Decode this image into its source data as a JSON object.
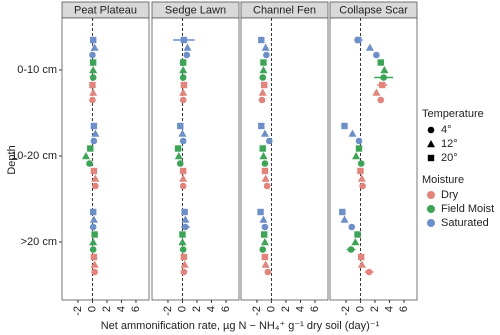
{
  "chart_data": {
    "type": "dot",
    "x_title": "Net ammonification rate, µg N − NH₄⁺ g⁻¹ dry soil (day)⁻¹",
    "y_title": "Depth",
    "depths": [
      "0-10 cm",
      "10-20 cm",
      ">20 cm"
    ],
    "xlim": [
      -4.2,
      7.8
    ],
    "xticks": [
      -2,
      0,
      2,
      4,
      6
    ],
    "legend": {
      "temperature": {
        "title": "Temperature",
        "items": [
          {
            "label": "4°",
            "shape": "circle"
          },
          {
            "label": "12°",
            "shape": "triangle"
          },
          {
            "label": "20°",
            "shape": "square"
          }
        ]
      },
      "moisture": {
        "title": "Moisture",
        "items": [
          {
            "label": "Dry",
            "color": "#e5837a"
          },
          {
            "label": "Field Moist",
            "color": "#3aa655"
          },
          {
            "label": "Saturated",
            "color": "#6b8fcb"
          }
        ]
      }
    },
    "facets": [
      {
        "title": "Peat Plateau",
        "values": [
          [
            [
              0.0,
              0.1,
              0.0
            ],
            [
              0.1,
              0.1,
              0.1
            ],
            [
              0.0,
              0.3,
              0.1
            ]
          ],
          [
            [
              0.4,
              0.4,
              0.2
            ],
            [
              -0.4,
              -0.9,
              -0.3
            ],
            [
              0.2,
              0.4,
              0.2
            ]
          ],
          [
            [
              0.3,
              0.3,
              0.2
            ],
            [
              0.1,
              0.1,
              0.3
            ],
            [
              0.1,
              0.2,
              0.1
            ]
          ]
        ],
        "errors": [
          [
            [
              null,
              null,
              null
            ],
            [
              null,
              null,
              null
            ],
            [
              null,
              null,
              null
            ]
          ],
          [
            [
              null,
              null,
              null
            ],
            [
              null,
              null,
              null
            ],
            [
              null,
              null,
              null
            ]
          ],
          [
            [
              null,
              null,
              null
            ],
            [
              null,
              null,
              null
            ],
            [
              null,
              null,
              null
            ]
          ]
        ]
      },
      {
        "title": "Sedge Lawn",
        "values": [
          [
            [
              0.1,
              0.1,
              0.2
            ],
            [
              0.1,
              0.1,
              0.1
            ],
            [
              0.6,
              0.7,
              0.2
            ]
          ],
          [
            [
              0.1,
              0.1,
              0.1
            ],
            [
              -0.3,
              -0.5,
              -0.6
            ],
            [
              0.1,
              0.0,
              -0.3
            ]
          ],
          [
            [
              0.2,
              0.3,
              0.2
            ],
            [
              0.1,
              0.0,
              0.0
            ],
            [
              0.4,
              0.4,
              0.3
            ]
          ]
        ],
        "errors": [
          [
            [
              null,
              null,
              null
            ],
            [
              null,
              null,
              null
            ],
            [
              null,
              null,
              1.5
            ]
          ],
          [
            [
              null,
              null,
              null
            ],
            [
              null,
              null,
              null
            ],
            [
              null,
              null,
              null
            ]
          ],
          [
            [
              null,
              null,
              null
            ],
            [
              null,
              null,
              null
            ],
            [
              0.6,
              null,
              null
            ]
          ]
        ]
      },
      {
        "title": "Channel Fen",
        "values": [
          [
            [
              -1.3,
              -1.2,
              -1.0
            ],
            [
              -1.2,
              -1.1,
              -1.1
            ],
            [
              -0.7,
              -0.8,
              -1.4
            ]
          ],
          [
            [
              -0.6,
              -0.8,
              -0.9
            ],
            [
              -0.9,
              -1.1,
              -1.2
            ],
            [
              -0.3,
              -0.9,
              -1.4
            ]
          ],
          [
            [
              -0.5,
              -0.8,
              -0.9
            ],
            [
              -1.2,
              -0.9,
              -1.0
            ],
            [
              -0.9,
              -1.1,
              -1.5
            ]
          ]
        ],
        "errors": [
          [
            [
              null,
              null,
              null
            ],
            [
              null,
              null,
              null
            ],
            [
              null,
              null,
              null
            ]
          ],
          [
            [
              null,
              null,
              null
            ],
            [
              null,
              null,
              null
            ],
            [
              null,
              null,
              null
            ]
          ],
          [
            [
              null,
              null,
              null
            ],
            [
              null,
              null,
              null
            ],
            [
              null,
              null,
              null
            ]
          ]
        ]
      },
      {
        "title": "Collapse Scar",
        "values": [
          [
            [
              2.8,
              2.2,
              3.0
            ],
            [
              3.2,
              3.3,
              2.8
            ],
            [
              2.2,
              1.3,
              -0.3
            ]
          ],
          [
            [
              0.3,
              0.2,
              0.0
            ],
            [
              0.1,
              -0.6,
              -0.2
            ],
            [
              -0.2,
              -1.1,
              -2.2
            ]
          ],
          [
            [
              1.2,
              0.2,
              0.1
            ],
            [
              -1.3,
              -0.7,
              -0.4
            ],
            [
              -1.2,
              -2.2,
              -2.5
            ]
          ]
        ],
        "errors": [
          [
            [
              null,
              null,
              0.7
            ],
            [
              1.3,
              null,
              null
            ],
            [
              null,
              null,
              0.6
            ]
          ],
          [
            [
              null,
              null,
              null
            ],
            [
              null,
              null,
              null
            ],
            [
              null,
              null,
              null
            ]
          ],
          [
            [
              0.6,
              null,
              null
            ],
            [
              0.6,
              null,
              null
            ],
            [
              null,
              null,
              null
            ]
          ]
        ]
      }
    ]
  }
}
